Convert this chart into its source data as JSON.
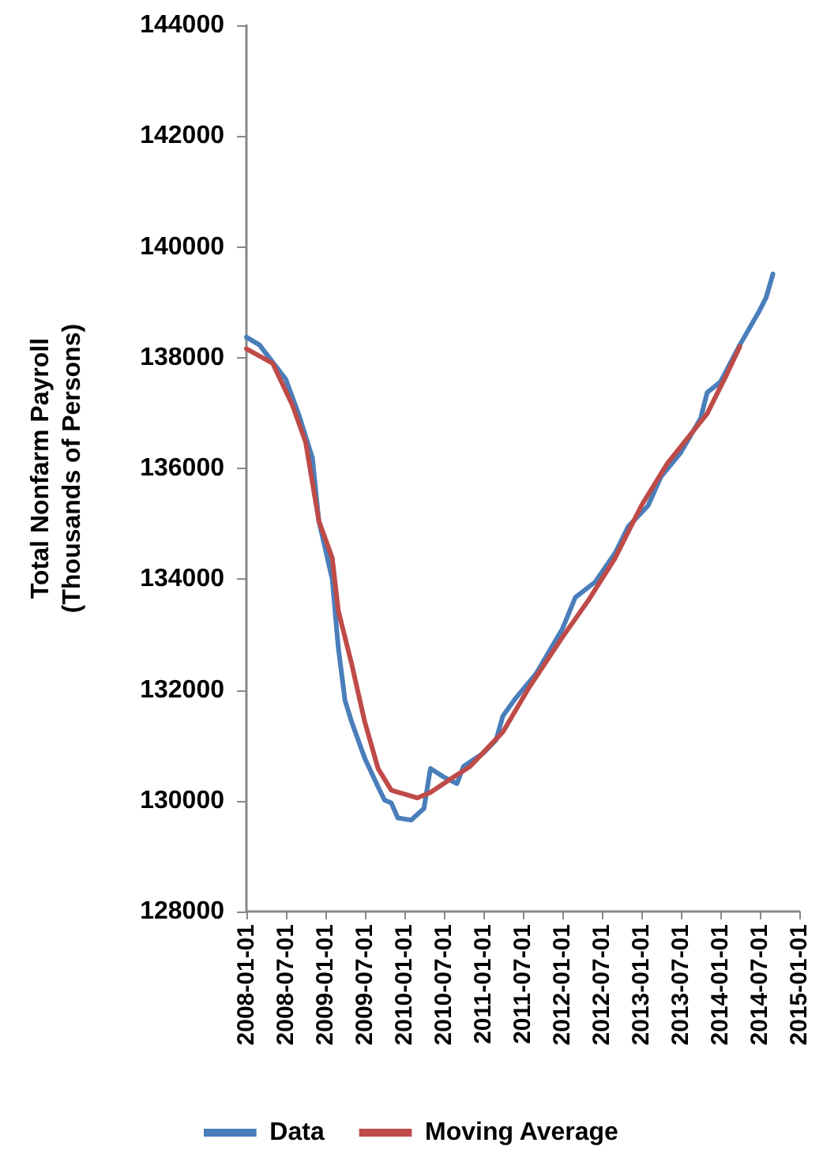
{
  "chart_data": {
    "type": "line",
    "ylabel": "Total Nonfarm Payroll\n(Thousands of Persons)",
    "xlim": [
      "2008-01-01",
      "2015-01-01"
    ],
    "xticks": [
      "2008-01-01",
      "2008-07-01",
      "2009-01-01",
      "2009-07-01",
      "2010-01-01",
      "2010-07-01",
      "2011-01-01",
      "2011-07-01",
      "2012-01-01",
      "2012-07-01",
      "2013-01-01",
      "2013-07-01",
      "2014-01-01",
      "2014-07-01",
      "2015-01-01"
    ],
    "ylim": [
      128000,
      144000
    ],
    "yticks": [
      128000,
      130000,
      132000,
      134000,
      136000,
      138000,
      140000,
      142000,
      144000
    ],
    "grid": false,
    "legend": "bottom",
    "marker": "none",
    "line_style": "solid",
    "series": [
      {
        "name": "Data",
        "color": "#4a7ebb",
        "x": [
          "2008-01-01",
          "2008-03-01",
          "2008-07-01",
          "2008-09-01",
          "2008-11-01",
          "2008-12-01",
          "2009-02-01",
          "2009-03-01",
          "2009-04-01",
          "2009-05-01",
          "2009-07-01",
          "2009-09-01",
          "2009-10-01",
          "2009-11-01",
          "2009-12-01",
          "2010-02-01",
          "2010-04-01",
          "2010-05-01",
          "2010-07-01",
          "2010-09-01",
          "2010-10-01",
          "2011-01-01",
          "2011-03-01",
          "2011-04-01",
          "2011-06-01",
          "2011-09-01",
          "2012-01-01",
          "2012-03-01",
          "2012-06-01",
          "2012-09-01",
          "2012-11-01",
          "2013-02-01",
          "2013-04-01",
          "2013-07-01",
          "2013-10-01",
          "2013-11-01",
          "2014-01-01",
          "2014-04-01",
          "2014-07-01",
          "2014-08-01",
          "2014-09-01"
        ],
        "values": [
          138370,
          138230,
          137610,
          136950,
          136190,
          135050,
          134000,
          132760,
          131810,
          131430,
          130770,
          130250,
          130010,
          129960,
          129690,
          129650,
          129860,
          130580,
          130430,
          130310,
          130620,
          130860,
          131100,
          131530,
          131860,
          132290,
          133100,
          133670,
          133950,
          134470,
          134950,
          135330,
          135850,
          136280,
          136900,
          137370,
          137560,
          138230,
          138850,
          139090,
          139510
        ]
      },
      {
        "name": "Moving Average",
        "color": "#be4b48",
        "x": [
          "2008-01-01",
          "2008-05-01",
          "2008-08-01",
          "2008-10-01",
          "2008-12-01",
          "2009-02-01",
          "2009-03-01",
          "2009-05-01",
          "2009-07-01",
          "2009-09-01",
          "2009-11-01",
          "2010-03-01",
          "2010-05-01",
          "2010-08-01",
          "2010-11-01",
          "2011-02-01",
          "2011-04-01",
          "2011-08-01",
          "2012-01-01",
          "2012-05-01",
          "2012-09-01",
          "2013-01-01",
          "2013-05-01",
          "2013-11-01",
          "2014-02-01",
          "2014-04-01"
        ],
        "values": [
          138160,
          137900,
          137140,
          136470,
          135050,
          134380,
          133430,
          132480,
          131430,
          130580,
          130190,
          130050,
          130150,
          130390,
          130620,
          131000,
          131240,
          132050,
          132950,
          133620,
          134380,
          135330,
          136090,
          136990,
          137710,
          138200
        ]
      }
    ]
  }
}
